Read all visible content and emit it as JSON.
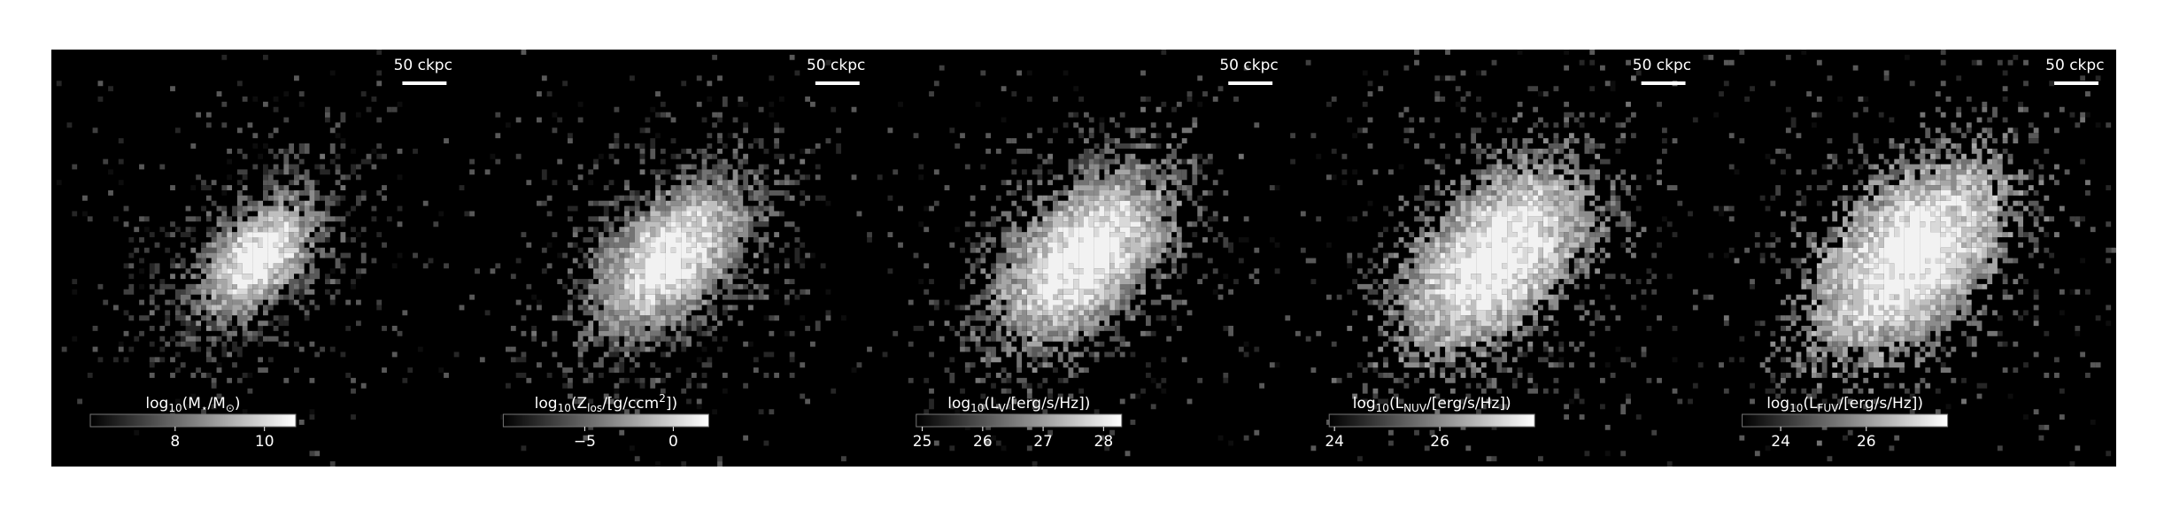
{
  "chart_data": [
    {
      "type": "image",
      "scalebar_label": "50 ckpc",
      "colorbar_label": [
        {
          "text": "log"
        },
        {
          "text": "10",
          "sub": true
        },
        {
          "text": "(M"
        },
        {
          "text": "⋆",
          "sub": true
        },
        {
          "text": "/M"
        },
        {
          "text": "⊙",
          "sub": true
        },
        {
          "text": ")"
        }
      ],
      "clim": [
        6.1,
        10.7
      ],
      "cticks": [
        8,
        10
      ],
      "cmap": [
        "#000000",
        "#ffffff"
      ]
    },
    {
      "type": "image",
      "scalebar_label": "50 ckpc",
      "colorbar_label": [
        {
          "text": "log"
        },
        {
          "text": "10",
          "sub": true
        },
        {
          "text": "(Z"
        },
        {
          "text": "los",
          "sub": true
        },
        {
          "text": "/[g/ccm"
        },
        {
          "text": "2",
          "sup": true
        },
        {
          "text": "])"
        }
      ],
      "clim": [
        -9.6,
        2.0
      ],
      "cticks": [
        {
          "value": -5,
          "label": "−5"
        },
        0
      ],
      "cmap": [
        "#000000",
        "#ffffff"
      ]
    },
    {
      "type": "image",
      "scalebar_label": "50 ckpc",
      "colorbar_label": [
        {
          "text": "log"
        },
        {
          "text": "10",
          "sub": true
        },
        {
          "text": "(L"
        },
        {
          "text": "V",
          "sub": true
        },
        {
          "text": "/[erg/s/Hz])"
        }
      ],
      "clim": [
        24.9,
        28.3
      ],
      "cticks": [
        25,
        26,
        27,
        28
      ],
      "cmap": [
        "#000000",
        "#ffffff"
      ]
    },
    {
      "type": "image",
      "scalebar_label": "50 ckpc",
      "colorbar_label": [
        {
          "text": "log"
        },
        {
          "text": "10",
          "sub": true
        },
        {
          "text": "(L"
        },
        {
          "text": "NUV",
          "sub": true
        },
        {
          "text": "/[erg/s/Hz])"
        }
      ],
      "clim": [
        23.9,
        27.8
      ],
      "cticks": [
        24,
        26
      ],
      "cmap": [
        "#000000",
        "#ffffff"
      ]
    },
    {
      "type": "image",
      "scalebar_label": "50 ckpc",
      "colorbar_label": [
        {
          "text": "log"
        },
        {
          "text": "10",
          "sub": true
        },
        {
          "text": "(L"
        },
        {
          "text": "FUV",
          "sub": true
        },
        {
          "text": "/[erg/s/Hz])"
        }
      ],
      "clim": [
        23.1,
        27.9
      ],
      "cticks": [
        24,
        26
      ],
      "cmap": [
        "#000000",
        "#ffffff"
      ]
    }
  ]
}
